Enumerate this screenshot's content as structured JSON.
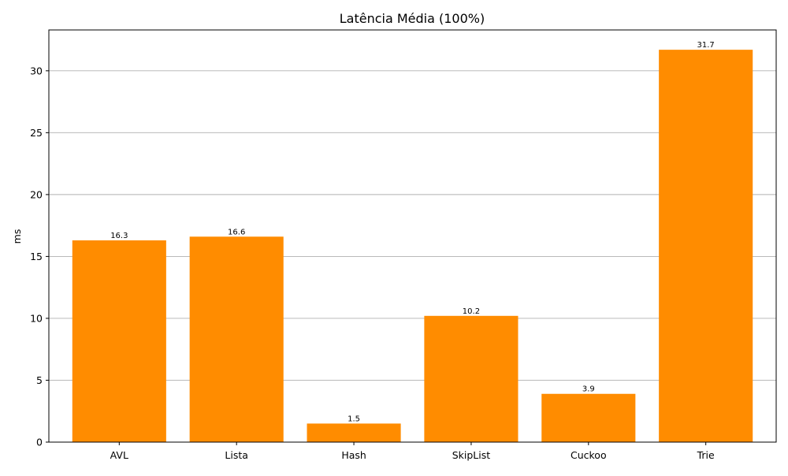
{
  "chart_data": {
    "type": "bar",
    "title": "Latência Média (100%)",
    "xlabel": "",
    "ylabel": "ms",
    "categories": [
      "AVL",
      "Lista",
      "Hash",
      "SkipList",
      "Cuckoo",
      "Trie"
    ],
    "values": [
      16.3,
      16.6,
      1.5,
      10.2,
      3.9,
      31.7
    ],
    "data_labels": [
      "16.3",
      "16.6",
      "1.5",
      "10.2",
      "3.9",
      "31.7"
    ],
    "ylim": [
      0,
      33.3
    ],
    "yticks": [
      0,
      5,
      10,
      15,
      20,
      25,
      30
    ],
    "grid": "y-major",
    "bar_color": "#ff8c00"
  }
}
